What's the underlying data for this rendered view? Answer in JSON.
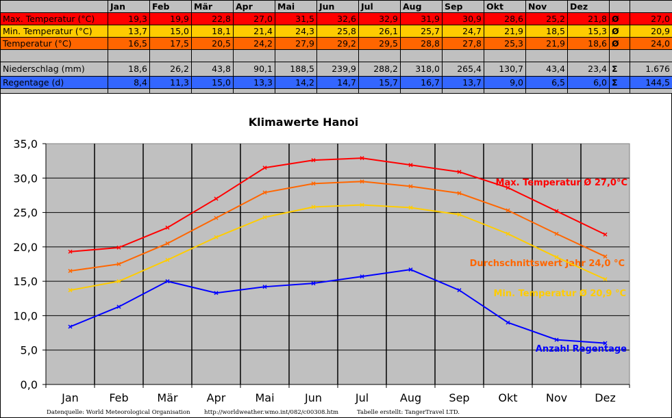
{
  "table": {
    "months": [
      "Jan",
      "Feb",
      "Mär",
      "Apr",
      "Mai",
      "Jun",
      "Jul",
      "Aug",
      "Sep",
      "Okt",
      "Nov",
      "Dez"
    ],
    "rows": [
      {
        "key": "max",
        "label": "Max. Temperatur (°C)",
        "values": [
          "19,3",
          "19,9",
          "22,8",
          "27,0",
          "31,5",
          "32,6",
          "32,9",
          "31,9",
          "30,9",
          "28,6",
          "25,2",
          "21,8"
        ],
        "symbol": "Ø",
        "summary": "27,0"
      },
      {
        "key": "min",
        "label": "Min. Temperatur (°C)",
        "values": [
          "13,7",
          "15,0",
          "18,1",
          "21,4",
          "24,3",
          "25,8",
          "26,1",
          "25,7",
          "24,7",
          "21,9",
          "18,5",
          "15,3"
        ],
        "symbol": "Ø",
        "summary": "20,9"
      },
      {
        "key": "avg",
        "label": "Temperatur (°C)",
        "values": [
          "16,5",
          "17,5",
          "20,5",
          "24,2",
          "27,9",
          "29,2",
          "29,5",
          "28,8",
          "27,8",
          "25,3",
          "21,9",
          "18,6"
        ],
        "symbol": "Ø",
        "summary": "24,0"
      },
      {
        "key": "rain",
        "label": "Niederschlag (mm)",
        "values": [
          "18,6",
          "26,2",
          "43,8",
          "90,1",
          "188,5",
          "239,9",
          "288,2",
          "318,0",
          "265,4",
          "130,7",
          "43,4",
          "23,4"
        ],
        "symbol": "Σ",
        "summary": "1.676"
      },
      {
        "key": "days",
        "label": "Regentage (d)",
        "values": [
          "8,4",
          "11,3",
          "15,0",
          "13,3",
          "14,2",
          "14,7",
          "15,7",
          "16,7",
          "13,7",
          "9,0",
          "6,5",
          "6,0"
        ],
        "symbol": "Σ",
        "summary": "144,5"
      }
    ]
  },
  "colors": {
    "max": "#ff0000",
    "min": "#ffcc00",
    "avg": "#ff6600",
    "days": "#0000ff",
    "plot_bg": "#c0c0c0"
  },
  "chart_data": {
    "type": "line",
    "title": "Klimawerte Hanoi",
    "categories": [
      "Jan",
      "Feb",
      "Mär",
      "Apr",
      "Mai",
      "Jun",
      "Jul",
      "Aug",
      "Sep",
      "Okt",
      "Nov",
      "Dez"
    ],
    "ylim": [
      0,
      35
    ],
    "yticks": [
      "0,0",
      "5,0",
      "10,0",
      "15,0",
      "20,0",
      "25,0",
      "30,0",
      "35,0"
    ],
    "grid": true,
    "series": [
      {
        "key": "max",
        "label": "Max. Temperatur Ø 27,0°C",
        "color": "#ff0000",
        "values": [
          19.3,
          19.9,
          22.8,
          27.0,
          31.5,
          32.6,
          32.9,
          31.9,
          30.9,
          28.6,
          25.2,
          21.8
        ]
      },
      {
        "key": "avg",
        "label": "Durchschnittswert Jahr 24,0 °C",
        "color": "#ff6600",
        "values": [
          16.5,
          17.5,
          20.5,
          24.2,
          27.9,
          29.2,
          29.5,
          28.8,
          27.8,
          25.3,
          21.9,
          18.6
        ]
      },
      {
        "key": "min",
        "label": "Min. Temperatur Ø 20,9 °C",
        "color": "#ffcc00",
        "values": [
          13.7,
          15.0,
          18.1,
          21.4,
          24.3,
          25.8,
          26.1,
          25.7,
          24.7,
          21.9,
          18.5,
          15.3
        ]
      },
      {
        "key": "days",
        "label": "Anzahl Regentage",
        "color": "#0000ff",
        "values": [
          8.4,
          11.3,
          15.0,
          13.3,
          14.2,
          14.7,
          15.7,
          16.7,
          13.7,
          9.0,
          6.5,
          6.0
        ]
      }
    ]
  },
  "footer": {
    "source": "Datenquelle: World Meteorological Organisation",
    "url": "http://worldweather.wmo.int/082/c00308.htm",
    "credit": "Tabelle erstellt: TangerTravel LTD."
  }
}
